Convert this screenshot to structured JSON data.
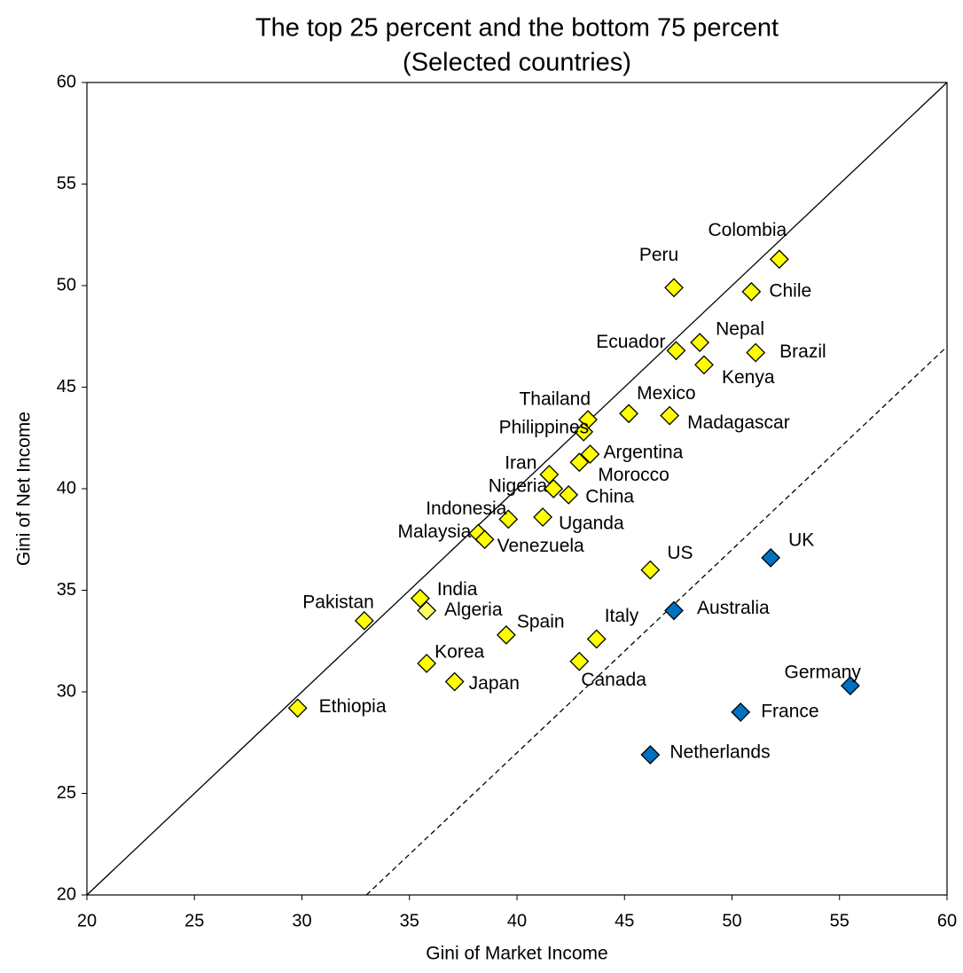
{
  "chart_data": {
    "type": "scatter",
    "title": "The top 25 percent and the bottom 75 percent",
    "subtitle": "(Selected countries)",
    "x_label": "Gini of Market Income",
    "y_label": "Gini of Net Income",
    "xlim": [
      20,
      60
    ],
    "ylim": [
      20,
      60
    ],
    "xticks": [
      20,
      25,
      30,
      35,
      40,
      45,
      50,
      55,
      60
    ],
    "yticks": [
      20,
      25,
      30,
      35,
      40,
      45,
      50,
      55,
      60
    ],
    "reference_lines": [
      {
        "x": [
          20,
          60
        ],
        "y": [
          20,
          60
        ],
        "style": "solid"
      },
      {
        "x": [
          33,
          60
        ],
        "y": [
          20,
          47
        ],
        "style": "dashed"
      }
    ],
    "points": [
      {
        "label": "Colombia",
        "x": 52.2,
        "y": 51.3,
        "color": "#ffff00"
      },
      {
        "label": "Peru",
        "x": 47.3,
        "y": 49.9,
        "color": "#ffff00"
      },
      {
        "label": "Chile",
        "x": 50.9,
        "y": 49.7,
        "color": "#ffff00"
      },
      {
        "label": "Nepal",
        "x": 48.5,
        "y": 47.2,
        "color": "#ffff00"
      },
      {
        "label": "Ecuador",
        "x": 47.4,
        "y": 46.8,
        "color": "#ffff00"
      },
      {
        "label": "Brazil",
        "x": 51.1,
        "y": 46.7,
        "color": "#ffff00"
      },
      {
        "label": "Kenya",
        "x": 48.7,
        "y": 46.1,
        "color": "#ffff00"
      },
      {
        "label": "Mexico",
        "x": 45.2,
        "y": 43.7,
        "color": "#ffff00"
      },
      {
        "label": "Madagascar",
        "x": 47.1,
        "y": 43.6,
        "color": "#ffff00"
      },
      {
        "label": "Thailand",
        "x": 43.3,
        "y": 43.4,
        "color": "#ffff00"
      },
      {
        "label": "Philippines",
        "x": 43.1,
        "y": 42.8,
        "color": "#ffff00"
      },
      {
        "label": "Argentina",
        "x": 43.4,
        "y": 41.7,
        "color": "#ffff00"
      },
      {
        "label": "Morocco",
        "x": 42.9,
        "y": 41.3,
        "color": "#ffff00"
      },
      {
        "label": "Iran",
        "x": 41.5,
        "y": 40.7,
        "color": "#ffff00"
      },
      {
        "label": "Nigeria",
        "x": 41.7,
        "y": 40.0,
        "color": "#ffff00"
      },
      {
        "label": "China",
        "x": 42.4,
        "y": 39.7,
        "color": "#ffff00"
      },
      {
        "label": "Uganda",
        "x": 41.2,
        "y": 38.6,
        "color": "#ffff00"
      },
      {
        "label": "Indonesia",
        "x": 39.6,
        "y": 38.5,
        "color": "#ffff00"
      },
      {
        "label": "Malaysia",
        "x": 38.2,
        "y": 37.8,
        "color": "#ffff00"
      },
      {
        "label": "Venezuela",
        "x": 38.5,
        "y": 37.5,
        "color": "#ffff00"
      },
      {
        "label": "US",
        "x": 46.2,
        "y": 36.0,
        "color": "#ffff00"
      },
      {
        "label": "UK",
        "x": 51.8,
        "y": 36.6,
        "color": "#0070c0"
      },
      {
        "label": "India",
        "x": 35.5,
        "y": 34.6,
        "color": "#ffff00"
      },
      {
        "label": "Algeria",
        "x": 35.8,
        "y": 34.0,
        "color": "#ffff66"
      },
      {
        "label": "Pakistan",
        "x": 32.9,
        "y": 33.5,
        "color": "#ffff00"
      },
      {
        "label": "Australia",
        "x": 47.3,
        "y": 34.0,
        "color": "#0070c0"
      },
      {
        "label": "Spain",
        "x": 39.5,
        "y": 32.8,
        "color": "#ffff00"
      },
      {
        "label": "Italy",
        "x": 43.7,
        "y": 32.6,
        "color": "#ffff00"
      },
      {
        "label": "Korea",
        "x": 35.8,
        "y": 31.4,
        "color": "#ffff00"
      },
      {
        "label": "Canada",
        "x": 42.9,
        "y": 31.5,
        "color": "#ffff00"
      },
      {
        "label": "Japan",
        "x": 37.1,
        "y": 30.5,
        "color": "#ffff00"
      },
      {
        "label": "Germany",
        "x": 55.5,
        "y": 30.3,
        "color": "#0070c0"
      },
      {
        "label": "Ethiopia",
        "x": 29.8,
        "y": 29.2,
        "color": "#ffff00"
      },
      {
        "label": "France",
        "x": 50.4,
        "y": 29.0,
        "color": "#0070c0"
      },
      {
        "label": "Netherlands",
        "x": 46.2,
        "y": 26.9,
        "color": "#0070c0"
      }
    ]
  }
}
